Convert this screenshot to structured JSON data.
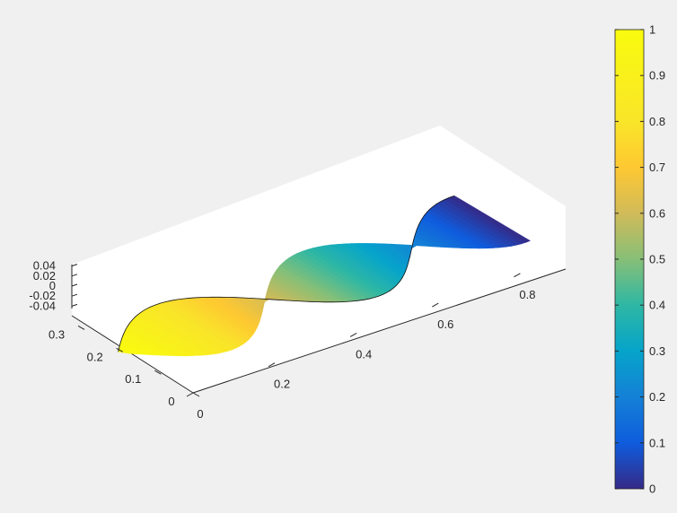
{
  "chart_data": {
    "type": "surface3d",
    "title": "",
    "xlabel": "",
    "ylabel": "",
    "zlabel": "",
    "colormap": "parula",
    "x_ticks": [
      "0",
      "0.2",
      "0.4",
      "0.6",
      "0.8"
    ],
    "y_ticks": [
      "0",
      "0.1",
      "0.2",
      "0.3"
    ],
    "z_ticks": [
      "0.04",
      "0.02",
      "0",
      "-0.02",
      "-0.04"
    ],
    "colorbar_ticks": [
      "0",
      "0.1",
      "0.2",
      "0.3",
      "0.4",
      "0.5",
      "0.6",
      "0.7",
      "0.8",
      "0.9",
      "1"
    ],
    "xlim": [
      0,
      0.9
    ],
    "ylim": [
      0,
      0.35
    ],
    "zlim": [
      -0.05,
      0.05
    ],
    "clim": [
      0,
      1
    ],
    "surface": {
      "description_of_shape": "twisted helical strip along x",
      "x_range": [
        0,
        0.9
      ],
      "strip_half_width": 0.1,
      "twist_turns": 1.25,
      "color_value": "1 - x/0.9"
    },
    "colorbar_position": "right",
    "grid": false
  }
}
